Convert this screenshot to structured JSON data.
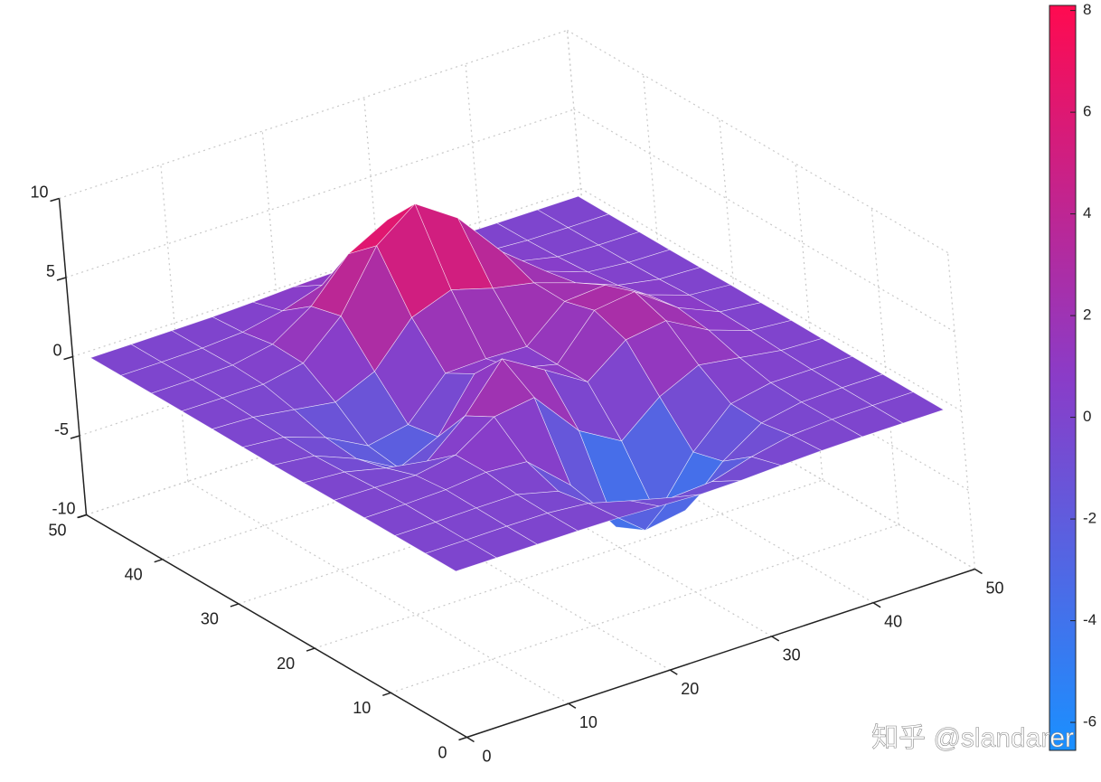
{
  "chart_data": {
    "type": "surface",
    "x": [
      1,
      5,
      9,
      13,
      17,
      21,
      25,
      29,
      33,
      37,
      41,
      45,
      49
    ],
    "y": [
      1,
      5,
      9,
      13,
      17,
      21,
      25,
      29,
      33,
      37,
      41,
      45,
      49
    ],
    "z": [
      [
        0,
        0,
        0,
        0,
        -0.03,
        -0.14,
        -0.25,
        -0.22,
        -0.11,
        -0.03,
        0,
        0,
        0
      ],
      [
        0,
        0,
        0.02,
        0,
        -0.23,
        -0.92,
        -1.57,
        -1.41,
        -0.69,
        -0.18,
        -0.03,
        0,
        0
      ],
      [
        0,
        0.01,
        0.05,
        0.05,
        -0.59,
        -2.64,
        -4.76,
        -4.35,
        -2.1,
        -0.53,
        -0.06,
        0,
        0
      ],
      [
        0,
        0.01,
        0.08,
        0.33,
        0.15,
        -2.19,
        -5.68,
        -5.76,
        -2.64,
        -0.44,
        0.04,
        0.03,
        0
      ],
      [
        -0.01,
        -0.06,
        -0.13,
        0.3,
        1.86,
        2.23,
        -0.72,
        -2.22,
        -0.27,
        0.88,
        0.5,
        0.11,
        0.01
      ],
      [
        -0.03,
        -0.2,
        -0.8,
        -1.21,
        0.8,
        3.55,
        2.0,
        0.39,
        2.2,
        2.56,
        1.12,
        0.24,
        0.03
      ],
      [
        -0.04,
        -0.3,
        -1.33,
        -2.77,
        -1.65,
        1.48,
        0.98,
        0.38,
        2.94,
        3.27,
        1.41,
        0.3,
        0.03
      ],
      [
        -0.03,
        -0.25,
        -1.12,
        -2.49,
        -2.0,
        0.39,
        0.46,
        0.38,
        2.38,
        2.56,
        1.1,
        0.23,
        0.03
      ],
      [
        -0.01,
        -0.11,
        -0.48,
        -0.86,
        0.23,
        2.79,
        3.69,
        2.94,
        2.43,
        1.58,
        0.58,
        0.11,
        0.01
      ],
      [
        0,
        -0.02,
        -0.01,
        0.48,
        2.61,
        6.2,
        8.0,
        6.25,
        3.25,
        1.19,
        0.29,
        0.05,
        0
      ],
      [
        0,
        0.01,
        0.08,
        0.55,
        2.1,
        4.56,
        5.86,
        4.57,
        2.21,
        0.68,
        0.13,
        0.02,
        0
      ],
      [
        0,
        0,
        0.03,
        0.19,
        0.69,
        1.47,
        1.88,
        1.47,
        0.7,
        0.2,
        0.04,
        0,
        0
      ],
      [
        0,
        0,
        0.01,
        0.03,
        0.11,
        0.23,
        0.3,
        0.23,
        0.11,
        0.03,
        0.01,
        0,
        0
      ]
    ],
    "xlim": [
      0,
      50
    ],
    "ylim": [
      0,
      50
    ],
    "zlim": [
      -10,
      10
    ],
    "xticks": [
      0,
      10,
      20,
      30,
      40,
      50
    ],
    "yticks": [
      0,
      10,
      20,
      30,
      40,
      50
    ],
    "zticks": [
      -10,
      -5,
      0,
      5,
      10
    ],
    "clim": [
      -6.55,
      8.1
    ],
    "colorbar_ticks": [
      -6,
      -4,
      -2,
      0,
      2,
      4,
      6,
      8
    ],
    "colormap": [
      "#1a90ff",
      "#8a3cc8",
      "#ff0a50"
    ],
    "edge_color": "#ffffff",
    "grid": true
  },
  "watermark": "知乎 @slandarer"
}
